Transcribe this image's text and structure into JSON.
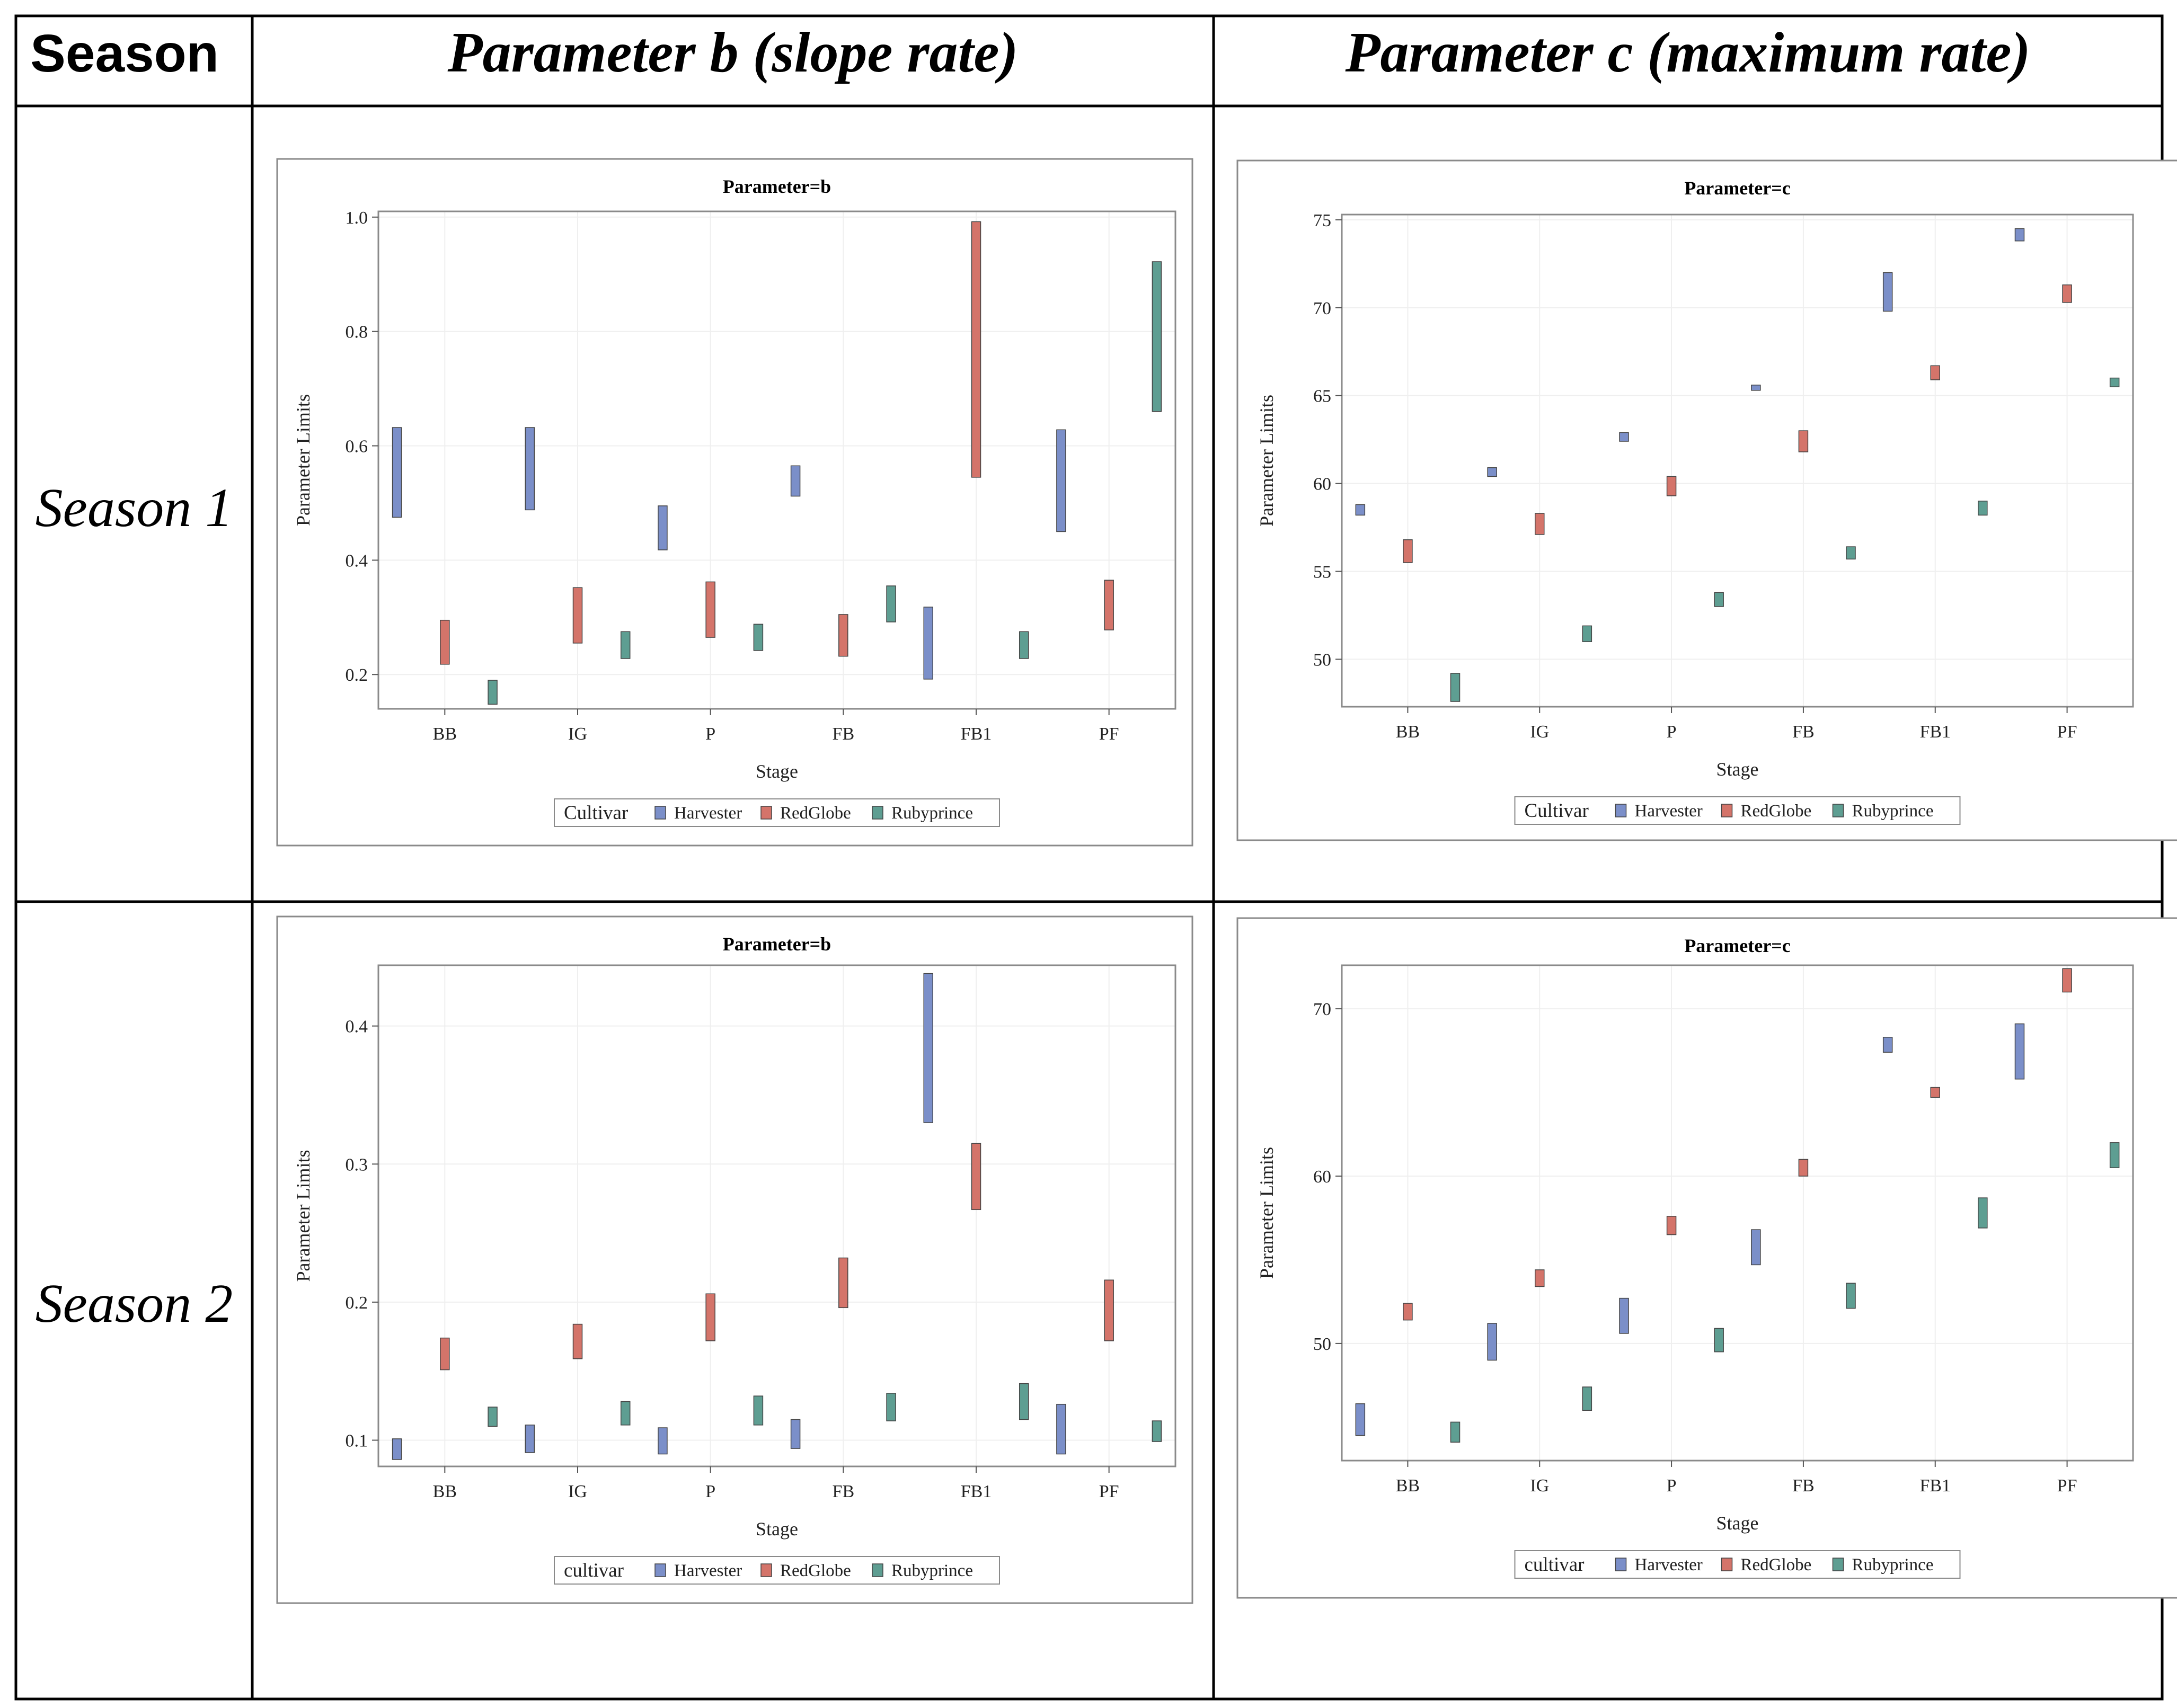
{
  "table": {
    "headers": [
      "Season",
      "Parameter b (slope rate)",
      "Parameter c (maximum rate)"
    ],
    "rows": [
      "Season 1",
      "Season 2"
    ]
  },
  "colors": {
    "Harvester": "#7b8fc9",
    "RedGlobe": "#d4746a",
    "Rubyprince": "#5e9e92"
  },
  "chart_data": [
    {
      "id": "s1b",
      "type": "bar",
      "subtype": "range",
      "title": "Parameter=b",
      "xlabel": "Stage",
      "ylabel": "Parameter Limits",
      "categories": [
        "BB",
        "IG",
        "P",
        "FB",
        "FB1",
        "PF"
      ],
      "ylim": [
        0.14,
        1.01
      ],
      "yticks": [
        0.2,
        0.4,
        0.6,
        0.8,
        1.0
      ],
      "ytick_labels": [
        "0.2",
        "0.4",
        "0.6",
        "0.8",
        "1.0"
      ],
      "legend_title": "Cultivar",
      "series": [
        {
          "name": "Harvester",
          "low": [
            0.475,
            0.488,
            0.418,
            0.512,
            0.192,
            0.45
          ],
          "high": [
            0.632,
            0.632,
            0.495,
            0.565,
            0.318,
            0.628
          ]
        },
        {
          "name": "RedGlobe",
          "low": [
            0.218,
            0.255,
            0.265,
            0.232,
            0.545,
            0.278
          ],
          "high": [
            0.295,
            0.352,
            0.362,
            0.305,
            0.992,
            0.365
          ]
        },
        {
          "name": "Rubyprince",
          "low": [
            0.148,
            0.228,
            0.242,
            0.292,
            0.228,
            0.66
          ],
          "high": [
            0.19,
            0.275,
            0.288,
            0.355,
            0.275,
            0.922
          ]
        }
      ]
    },
    {
      "id": "s1c",
      "type": "bar",
      "subtype": "range",
      "title": "Parameter=c",
      "xlabel": "Stage",
      "ylabel": "Parameter Limits",
      "categories": [
        "BB",
        "IG",
        "P",
        "FB",
        "FB1",
        "PF"
      ],
      "ylim": [
        47.3,
        75.3
      ],
      "yticks": [
        50,
        55,
        60,
        65,
        70,
        75
      ],
      "ytick_labels": [
        "50",
        "55",
        "60",
        "65",
        "70",
        "75"
      ],
      "legend_title": "Cultivar",
      "series": [
        {
          "name": "Harvester",
          "low": [
            58.2,
            60.4,
            62.4,
            65.3,
            69.8,
            73.8
          ],
          "high": [
            58.8,
            60.9,
            62.9,
            65.6,
            72.0,
            74.5
          ]
        },
        {
          "name": "RedGlobe",
          "low": [
            55.5,
            57.1,
            59.3,
            61.8,
            65.9,
            70.3
          ],
          "high": [
            56.8,
            58.3,
            60.4,
            63.0,
            66.7,
            71.3
          ]
        },
        {
          "name": "Rubyprince",
          "low": [
            47.6,
            51.0,
            53.0,
            55.7,
            58.2,
            65.5
          ],
          "high": [
            49.2,
            51.9,
            53.8,
            56.4,
            59.0,
            66.0
          ]
        }
      ]
    },
    {
      "id": "s2b",
      "type": "bar",
      "subtype": "range",
      "title": "Parameter=b",
      "xlabel": "Stage",
      "ylabel": "Parameter Limits",
      "categories": [
        "BB",
        "IG",
        "P",
        "FB",
        "FB1",
        "PF"
      ],
      "ylim": [
        0.081,
        0.444
      ],
      "yticks": [
        0.1,
        0.2,
        0.3,
        0.4
      ],
      "ytick_labels": [
        "0.1",
        "0.2",
        "0.3",
        "0.4"
      ],
      "legend_title": "cultivar",
      "series": [
        {
          "name": "Harvester",
          "low": [
            0.086,
            0.091,
            0.09,
            0.094,
            0.33,
            0.09
          ],
          "high": [
            0.101,
            0.111,
            0.109,
            0.115,
            0.438,
            0.126
          ]
        },
        {
          "name": "RedGlobe",
          "low": [
            0.151,
            0.159,
            0.172,
            0.196,
            0.267,
            0.172
          ],
          "high": [
            0.174,
            0.184,
            0.206,
            0.232,
            0.315,
            0.216
          ]
        },
        {
          "name": "Rubyprince",
          "low": [
            0.11,
            0.111,
            0.111,
            0.114,
            0.115,
            0.099
          ],
          "high": [
            0.124,
            0.128,
            0.132,
            0.134,
            0.141,
            0.114
          ]
        }
      ]
    },
    {
      "id": "s2c",
      "type": "bar",
      "subtype": "range",
      "title": "Parameter=c",
      "xlabel": "Stage",
      "ylabel": "Parameter Limits",
      "categories": [
        "BB",
        "IG",
        "P",
        "FB",
        "FB1",
        "PF"
      ],
      "ylim": [
        43.0,
        72.6
      ],
      "yticks": [
        50,
        60,
        70
      ],
      "ytick_labels": [
        "50",
        "60",
        "70"
      ],
      "legend_title": "cultivar",
      "series": [
        {
          "name": "Harvester",
          "low": [
            44.5,
            49.0,
            50.6,
            54.7,
            67.4,
            65.8
          ],
          "high": [
            46.4,
            51.2,
            52.7,
            56.8,
            68.3,
            69.1
          ]
        },
        {
          "name": "RedGlobe",
          "low": [
            51.4,
            53.4,
            56.5,
            60.0,
            64.7,
            71.0
          ],
          "high": [
            52.4,
            54.4,
            57.6,
            61.0,
            65.3,
            72.4
          ]
        },
        {
          "name": "Rubyprince",
          "low": [
            44.1,
            46.0,
            49.5,
            52.1,
            56.9,
            60.5
          ],
          "high": [
            45.3,
            47.4,
            50.9,
            53.6,
            58.7,
            62.0
          ]
        }
      ]
    }
  ]
}
